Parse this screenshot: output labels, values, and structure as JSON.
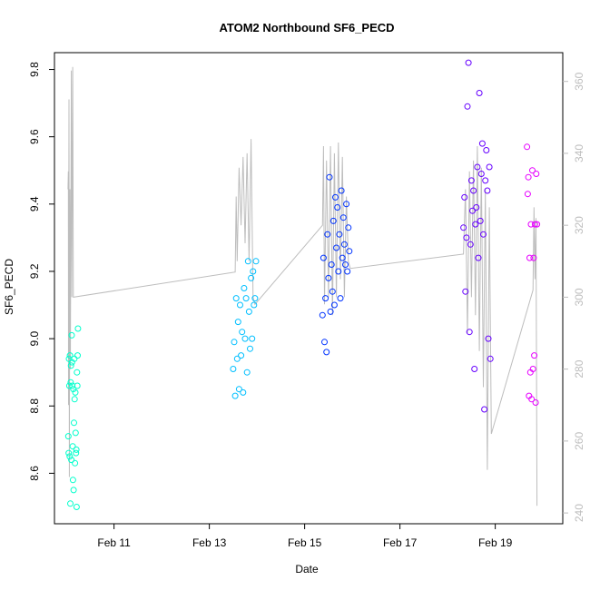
{
  "chart_data": {
    "type": "scatter",
    "title": "ATOM2 Northbound SF6_PECD",
    "xlabel": "Date",
    "ylabel": "SF6_PECD",
    "xlim": [
      "2016-02-09T18:00",
      "2016-02-20T10:00"
    ],
    "ylim": [
      8.45,
      9.85
    ],
    "y2lim": [
      237,
      368
    ],
    "x_ticks": [
      {
        "x": "2016-02-11",
        "label": "Feb 11"
      },
      {
        "x": "2016-02-13",
        "label": "Feb 13"
      },
      {
        "x": "2016-02-15",
        "label": "Feb 15"
      },
      {
        "x": "2016-02-17",
        "label": "Feb 17"
      },
      {
        "x": "2016-02-19",
        "label": "Feb 19"
      }
    ],
    "y_ticks": [
      8.6,
      8.8,
      9.0,
      9.2,
      9.4,
      9.6,
      9.8
    ],
    "y2_ticks": [
      240,
      260,
      280,
      300,
      320,
      340,
      360
    ],
    "grid": false,
    "point_colors": [
      "#00ffcc",
      "#00bfff",
      "#0033ff",
      "#6600ff",
      "#e600ff"
    ],
    "line_color": "#bdbdbd",
    "series": [
      {
        "group": 1,
        "x": [
          "2016-02-10T01:00",
          "2016-02-10T01:10",
          "2016-02-10T01:20",
          "2016-02-10T01:30",
          "2016-02-10T01:40",
          "2016-02-10T01:50",
          "2016-02-10T02:00",
          "2016-02-10T02:10",
          "2016-02-10T02:20",
          "2016-02-10T02:30",
          "2016-02-10T02:40",
          "2016-02-10T02:50",
          "2016-02-10T03:00",
          "2016-02-10T03:10",
          "2016-02-10T03:20",
          "2016-02-10T03:30",
          "2016-02-10T03:40",
          "2016-02-10T03:50",
          "2016-02-10T04:00",
          "2016-02-10T04:10",
          "2016-02-10T04:20",
          "2016-02-10T04:30",
          "2016-02-10T04:40",
          "2016-02-10T04:50",
          "2016-02-10T05:00",
          "2016-02-10T05:10",
          "2016-02-10T05:20",
          "2016-02-10T05:30",
          "2016-02-10T05:40",
          "2016-02-10T05:50"
        ],
        "y": [
          8.71,
          8.66,
          8.94,
          8.86,
          8.65,
          8.95,
          8.51,
          8.87,
          8.92,
          8.64,
          9.01,
          8.93,
          8.86,
          8.68,
          8.58,
          8.85,
          8.55,
          8.75,
          8.94,
          8.82,
          8.63,
          8.84,
          8.72,
          8.66,
          8.67,
          8.5,
          8.9,
          8.86,
          8.95,
          9.03
        ]
      },
      {
        "group": 2,
        "x": [
          "2016-02-13T12:00",
          "2016-02-13T12:30",
          "2016-02-13T13:00",
          "2016-02-13T13:30",
          "2016-02-13T14:00",
          "2016-02-13T14:30",
          "2016-02-13T15:00",
          "2016-02-13T15:30",
          "2016-02-13T16:00",
          "2016-02-13T16:30",
          "2016-02-13T17:00",
          "2016-02-13T17:30",
          "2016-02-13T18:00",
          "2016-02-13T18:30",
          "2016-02-13T19:00",
          "2016-02-13T19:30",
          "2016-02-13T20:00",
          "2016-02-13T20:30",
          "2016-02-13T21:00",
          "2016-02-13T21:30",
          "2016-02-13T22:00",
          "2016-02-13T22:30",
          "2016-02-13T23:00",
          "2016-02-13T23:30"
        ],
        "y": [
          8.91,
          8.99,
          8.83,
          9.12,
          8.94,
          9.05,
          8.85,
          9.1,
          8.95,
          9.02,
          8.84,
          9.15,
          9.0,
          9.12,
          8.9,
          9.23,
          9.08,
          8.97,
          9.18,
          9.0,
          9.2,
          9.1,
          9.12,
          9.23
        ]
      },
      {
        "group": 3,
        "x": [
          "2016-02-15T09:00",
          "2016-02-15T09:30",
          "2016-02-15T10:00",
          "2016-02-15T10:30",
          "2016-02-15T11:00",
          "2016-02-15T11:30",
          "2016-02-15T12:00",
          "2016-02-15T12:30",
          "2016-02-15T13:00",
          "2016-02-15T13:30",
          "2016-02-15T14:00",
          "2016-02-15T14:30",
          "2016-02-15T15:00",
          "2016-02-15T15:30",
          "2016-02-15T16:00",
          "2016-02-15T16:30",
          "2016-02-15T17:00",
          "2016-02-15T17:30",
          "2016-02-15T18:00",
          "2016-02-15T18:30",
          "2016-02-15T19:00",
          "2016-02-15T19:30",
          "2016-02-15T20:00",
          "2016-02-15T20:30",
          "2016-02-15T21:00",
          "2016-02-15T21:30",
          "2016-02-15T22:00",
          "2016-02-15T22:30"
        ],
        "y": [
          9.07,
          9.24,
          8.99,
          9.12,
          8.96,
          9.31,
          9.18,
          9.48,
          9.08,
          9.22,
          9.14,
          9.35,
          9.1,
          9.42,
          9.27,
          9.39,
          9.2,
          9.31,
          9.12,
          9.44,
          9.24,
          9.36,
          9.28,
          9.22,
          9.4,
          9.2,
          9.33,
          9.26
        ]
      },
      {
        "group": 4,
        "x": [
          "2016-02-18T08:00",
          "2016-02-18T08:30",
          "2016-02-18T09:00",
          "2016-02-18T09:30",
          "2016-02-18T10:00",
          "2016-02-18T10:30",
          "2016-02-18T11:00",
          "2016-02-18T11:30",
          "2016-02-18T12:00",
          "2016-02-18T12:30",
          "2016-02-18T13:00",
          "2016-02-18T13:30",
          "2016-02-18T14:00",
          "2016-02-18T14:30",
          "2016-02-18T15:00",
          "2016-02-18T15:30",
          "2016-02-18T16:00",
          "2016-02-18T16:30",
          "2016-02-18T17:00",
          "2016-02-18T17:30",
          "2016-02-18T18:00",
          "2016-02-18T18:30",
          "2016-02-18T19:00",
          "2016-02-18T19:30",
          "2016-02-18T20:00",
          "2016-02-18T20:30",
          "2016-02-18T21:00",
          "2016-02-18T21:30"
        ],
        "y": [
          9.33,
          9.42,
          9.14,
          9.3,
          9.69,
          9.82,
          9.02,
          9.28,
          9.47,
          9.38,
          9.44,
          8.91,
          9.34,
          9.39,
          9.51,
          9.24,
          9.73,
          9.35,
          9.49,
          9.58,
          9.31,
          8.79,
          9.47,
          9.56,
          9.44,
          9.0,
          9.51,
          8.94
        ]
      },
      {
        "group": 5,
        "x": [
          "2016-02-19T16:00",
          "2016-02-19T16:20",
          "2016-02-19T16:40",
          "2016-02-19T17:00",
          "2016-02-19T17:20",
          "2016-02-19T17:40",
          "2016-02-19T18:00",
          "2016-02-19T18:20",
          "2016-02-19T18:40",
          "2016-02-19T19:00",
          "2016-02-19T19:20",
          "2016-02-19T19:40",
          "2016-02-19T20:00",
          "2016-02-19T20:20",
          "2016-02-19T20:40",
          "2016-02-19T21:00"
        ],
        "y": [
          9.57,
          9.43,
          9.48,
          8.83,
          9.24,
          8.9,
          9.34,
          8.82,
          9.5,
          8.91,
          9.24,
          8.95,
          9.34,
          8.81,
          9.49,
          9.34
        ]
      }
    ],
    "y2_line": [
      {
        "x": "2016-02-10T00:50",
        "y2": 330
      },
      {
        "x": "2016-02-10T01:00",
        "y2": 335
      },
      {
        "x": "2016-02-10T01:05",
        "y2": 270
      },
      {
        "x": "2016-02-10T01:20",
        "y2": 355
      },
      {
        "x": "2016-02-10T01:30",
        "y2": 250
      },
      {
        "x": "2016-02-10T01:45",
        "y2": 330
      },
      {
        "x": "2016-02-10T02:00",
        "y2": 280
      },
      {
        "x": "2016-02-10T02:30",
        "y2": 363
      },
      {
        "x": "2016-02-10T02:45",
        "y2": 300
      },
      {
        "x": "2016-02-10T03:10",
        "y2": 364
      },
      {
        "x": "2016-02-10T03:30",
        "y2": 300
      },
      {
        "x": "2016-02-13T13:00",
        "y2": 307
      },
      {
        "x": "2016-02-13T13:30",
        "y2": 328
      },
      {
        "x": "2016-02-13T14:00",
        "y2": 310
      },
      {
        "x": "2016-02-13T15:00",
        "y2": 336
      },
      {
        "x": "2016-02-13T16:00",
        "y2": 320
      },
      {
        "x": "2016-02-13T17:00",
        "y2": 339
      },
      {
        "x": "2016-02-13T18:00",
        "y2": 315
      },
      {
        "x": "2016-02-13T19:00",
        "y2": 340
      },
      {
        "x": "2016-02-13T20:00",
        "y2": 310
      },
      {
        "x": "2016-02-13T21:00",
        "y2": 344
      },
      {
        "x": "2016-02-13T22:00",
        "y2": 300
      },
      {
        "x": "2016-02-13T23:00",
        "y2": 298
      },
      {
        "x": "2016-02-15T09:00",
        "y2": 320
      },
      {
        "x": "2016-02-15T09:30",
        "y2": 342
      },
      {
        "x": "2016-02-15T10:00",
        "y2": 298
      },
      {
        "x": "2016-02-15T11:00",
        "y2": 338
      },
      {
        "x": "2016-02-15T12:00",
        "y2": 300
      },
      {
        "x": "2016-02-15T13:00",
        "y2": 342
      },
      {
        "x": "2016-02-15T14:00",
        "y2": 295
      },
      {
        "x": "2016-02-15T15:00",
        "y2": 340
      },
      {
        "x": "2016-02-15T16:00",
        "y2": 300
      },
      {
        "x": "2016-02-15T17:00",
        "y2": 343
      },
      {
        "x": "2016-02-15T18:00",
        "y2": 305
      },
      {
        "x": "2016-02-15T19:00",
        "y2": 339
      },
      {
        "x": "2016-02-15T20:00",
        "y2": 300
      },
      {
        "x": "2016-02-15T21:00",
        "y2": 328
      },
      {
        "x": "2016-02-15T22:00",
        "y2": 310
      },
      {
        "x": "2016-02-15T23:00",
        "y2": 308
      },
      {
        "x": "2016-02-18T08:00",
        "y2": 312
      },
      {
        "x": "2016-02-18T09:00",
        "y2": 330
      },
      {
        "x": "2016-02-18T10:00",
        "y2": 290
      },
      {
        "x": "2016-02-18T11:00",
        "y2": 335
      },
      {
        "x": "2016-02-18T12:00",
        "y2": 300
      },
      {
        "x": "2016-02-18T13:00",
        "y2": 338
      },
      {
        "x": "2016-02-18T14:00",
        "y2": 295
      },
      {
        "x": "2016-02-18T15:00",
        "y2": 342
      },
      {
        "x": "2016-02-18T16:00",
        "y2": 285
      },
      {
        "x": "2016-02-18T17:00",
        "y2": 336
      },
      {
        "x": "2016-02-18T18:00",
        "y2": 275
      },
      {
        "x": "2016-02-18T19:00",
        "y2": 330
      },
      {
        "x": "2016-02-18T20:00",
        "y2": 252
      },
      {
        "x": "2016-02-18T21:00",
        "y2": 325
      },
      {
        "x": "2016-02-18T22:00",
        "y2": 262
      },
      {
        "x": "2016-02-19T19:00",
        "y2": 302
      },
      {
        "x": "2016-02-19T19:30",
        "y2": 325
      },
      {
        "x": "2016-02-19T20:00",
        "y2": 305
      },
      {
        "x": "2016-02-19T20:30",
        "y2": 322
      },
      {
        "x": "2016-02-19T21:00",
        "y2": 242
      }
    ]
  }
}
